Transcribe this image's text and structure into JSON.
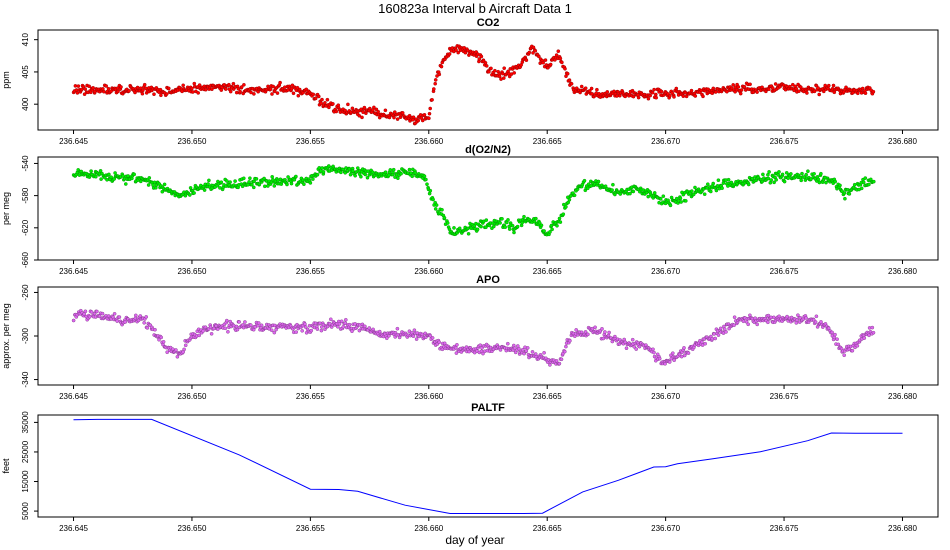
{
  "figure": {
    "title": "160823a   Interval b Aircraft Data 1",
    "xlabel": "day of year"
  },
  "chart_data": [
    {
      "type": "scatter",
      "title": "CO2",
      "ylabel": "ppm",
      "color": "#ff0000",
      "xlim": [
        236.6435,
        236.6815
      ],
      "ylim": [
        396.0,
        411.5
      ],
      "xticks": [
        "236.645",
        "236.650",
        "236.655",
        "236.660",
        "236.665",
        "236.670",
        "236.675",
        "236.680"
      ],
      "yticks": [
        "400",
        "405",
        "410"
      ],
      "x": [
        236.645,
        236.646,
        236.647,
        236.648,
        236.649,
        236.65,
        236.651,
        236.652,
        236.653,
        236.654,
        236.655,
        236.6555,
        236.656,
        236.6565,
        236.657,
        236.6575,
        236.658,
        236.6585,
        236.659,
        236.6595,
        236.66,
        236.6603,
        236.6606,
        236.661,
        236.6615,
        236.662,
        236.6625,
        236.663,
        236.6635,
        236.664,
        236.6643,
        236.6646,
        236.665,
        236.6655,
        236.666,
        236.667,
        236.668,
        236.669,
        236.67,
        236.671,
        236.672,
        236.673,
        236.674,
        236.675,
        236.676,
        236.677,
        236.678,
        236.6788
      ],
      "y": [
        402.2,
        402.3,
        402.1,
        402.4,
        402.0,
        402.5,
        402.8,
        402.4,
        402.2,
        402.6,
        401.8,
        400.3,
        399.4,
        399.0,
        398.7,
        399.0,
        398.5,
        398.2,
        398.0,
        397.6,
        398.0,
        404.0,
        406.8,
        408.6,
        408.3,
        408.0,
        405.2,
        404.6,
        404.8,
        406.6,
        408.8,
        407.6,
        405.8,
        407.8,
        402.6,
        401.5,
        401.6,
        401.5,
        401.7,
        401.8,
        402.0,
        402.4,
        402.3,
        402.6,
        402.2,
        402.3,
        402.0,
        402.2
      ]
    },
    {
      "type": "scatter",
      "title": "d(O2/N2)",
      "ylabel": "per meg",
      "color": "#00ee00",
      "xlim": [
        236.6435,
        236.6815
      ],
      "ylim": [
        -660,
        -532
      ],
      "xticks": [
        "236.645",
        "236.650",
        "236.655",
        "236.660",
        "236.665",
        "236.670",
        "236.675",
        "236.680"
      ],
      "yticks": [
        "-660",
        "-620",
        "-580",
        "-540"
      ],
      "x": [
        236.645,
        236.646,
        236.647,
        236.648,
        236.649,
        236.6495,
        236.65,
        236.651,
        236.652,
        236.653,
        236.654,
        236.655,
        236.6555,
        236.656,
        236.657,
        236.658,
        236.659,
        236.6598,
        236.6602,
        236.6606,
        236.661,
        236.6615,
        236.662,
        236.6625,
        236.663,
        236.6635,
        236.664,
        236.6645,
        236.665,
        236.6655,
        236.666,
        236.6665,
        236.667,
        236.668,
        236.669,
        236.67,
        236.671,
        236.672,
        236.673,
        236.674,
        236.675,
        236.676,
        236.6765,
        236.677,
        236.6775,
        236.678,
        236.6788
      ],
      "y": [
        -553,
        -553,
        -557,
        -560,
        -574,
        -580,
        -573,
        -567,
        -566,
        -564,
        -562,
        -560,
        -546,
        -548,
        -552,
        -554,
        -550,
        -555,
        -590,
        -605,
        -628,
        -622,
        -618,
        -614,
        -612,
        -620,
        -612,
        -610,
        -628,
        -610,
        -580,
        -568,
        -564,
        -576,
        -572,
        -590,
        -578,
        -568,
        -564,
        -558,
        -556,
        -557,
        -560,
        -559,
        -578,
        -568,
        -564
      ]
    },
    {
      "type": "scatter",
      "title": "APO",
      "ylabel": "approx. per meg",
      "color": "#dd66ee",
      "xlim": [
        236.6435,
        236.6815
      ],
      "ylim": [
        -345,
        -255
      ],
      "xticks": [
        "236.645",
        "236.650",
        "236.655",
        "236.660",
        "236.665",
        "236.670",
        "236.675",
        "236.680"
      ],
      "yticks": [
        "-340",
        "-300",
        "-260"
      ],
      "x": [
        236.645,
        236.646,
        236.647,
        236.648,
        236.649,
        236.6495,
        236.65,
        236.651,
        236.652,
        236.653,
        236.654,
        236.655,
        236.656,
        236.657,
        236.658,
        236.659,
        236.66,
        236.6605,
        236.661,
        236.662,
        236.663,
        236.664,
        236.6645,
        236.665,
        236.6655,
        236.666,
        236.667,
        236.668,
        236.669,
        236.67,
        236.671,
        236.672,
        236.673,
        236.674,
        236.675,
        236.676,
        236.6765,
        236.677,
        236.6775,
        236.678,
        236.6788
      ],
      "y": [
        -282,
        -280,
        -285,
        -285,
        -312,
        -316,
        -300,
        -292,
        -290,
        -292,
        -292,
        -292,
        -288,
        -292,
        -298,
        -298,
        -300,
        -308,
        -312,
        -312,
        -310,
        -314,
        -318,
        -322,
        -324,
        -300,
        -294,
        -306,
        -308,
        -325,
        -312,
        -300,
        -286,
        -284,
        -284,
        -284,
        -288,
        -296,
        -316,
        -308,
        -292
      ]
    },
    {
      "type": "line",
      "title": "PALTF",
      "ylabel": "feet",
      "color": "#0000ff",
      "xlim": [
        236.6435,
        236.6815
      ],
      "ylim": [
        3000,
        37500
      ],
      "xticks": [
        "236.645",
        "236.650",
        "236.655",
        "236.660",
        "236.665",
        "236.670",
        "236.675",
        "236.680"
      ],
      "yticks": [
        "5000",
        "15000",
        "25000",
        "35000"
      ],
      "x": [
        236.645,
        236.646,
        236.647,
        236.6483,
        236.652,
        236.655,
        236.6562,
        236.657,
        236.659,
        236.6609,
        236.662,
        236.664,
        236.6648,
        236.6665,
        236.668,
        236.6695,
        236.67,
        236.6705,
        236.672,
        236.674,
        236.676,
        236.677,
        236.678,
        236.68
      ],
      "y": [
        35900,
        36000,
        36000,
        36000,
        24000,
        12400,
        12300,
        11700,
        7000,
        4200,
        4200,
        4200,
        4300,
        11500,
        15400,
        19900,
        20000,
        21000,
        22700,
        25100,
        28800,
        31400,
        31300,
        31300
      ]
    }
  ]
}
